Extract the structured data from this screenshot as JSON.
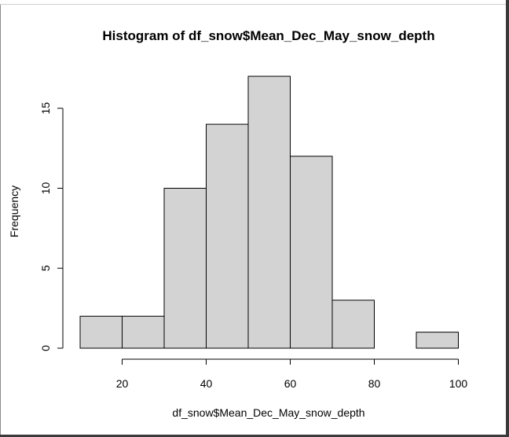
{
  "chart_data": {
    "type": "bar",
    "title": "Histogram of df_snow$Mean_Dec_May_snow_depth",
    "xlabel": "df_snow$Mean_Dec_May_snow_depth",
    "ylabel": "Frequency",
    "bins": [
      {
        "from": 10,
        "to": 20,
        "count": 2
      },
      {
        "from": 20,
        "to": 30,
        "count": 2
      },
      {
        "from": 30,
        "to": 40,
        "count": 10
      },
      {
        "from": 40,
        "to": 50,
        "count": 14
      },
      {
        "from": 50,
        "to": 60,
        "count": 17
      },
      {
        "from": 60,
        "to": 70,
        "count": 12
      },
      {
        "from": 70,
        "to": 80,
        "count": 3
      },
      {
        "from": 80,
        "to": 90,
        "count": 0
      },
      {
        "from": 90,
        "to": 100,
        "count": 1
      }
    ],
    "xticks": [
      20,
      40,
      60,
      80,
      100
    ],
    "yticks": [
      0,
      5,
      10,
      15
    ],
    "xlim": [
      10,
      100
    ],
    "ylim": [
      0,
      17
    ],
    "bar_color": "#d3d3d3",
    "border_color": "#000000",
    "grid": false
  }
}
